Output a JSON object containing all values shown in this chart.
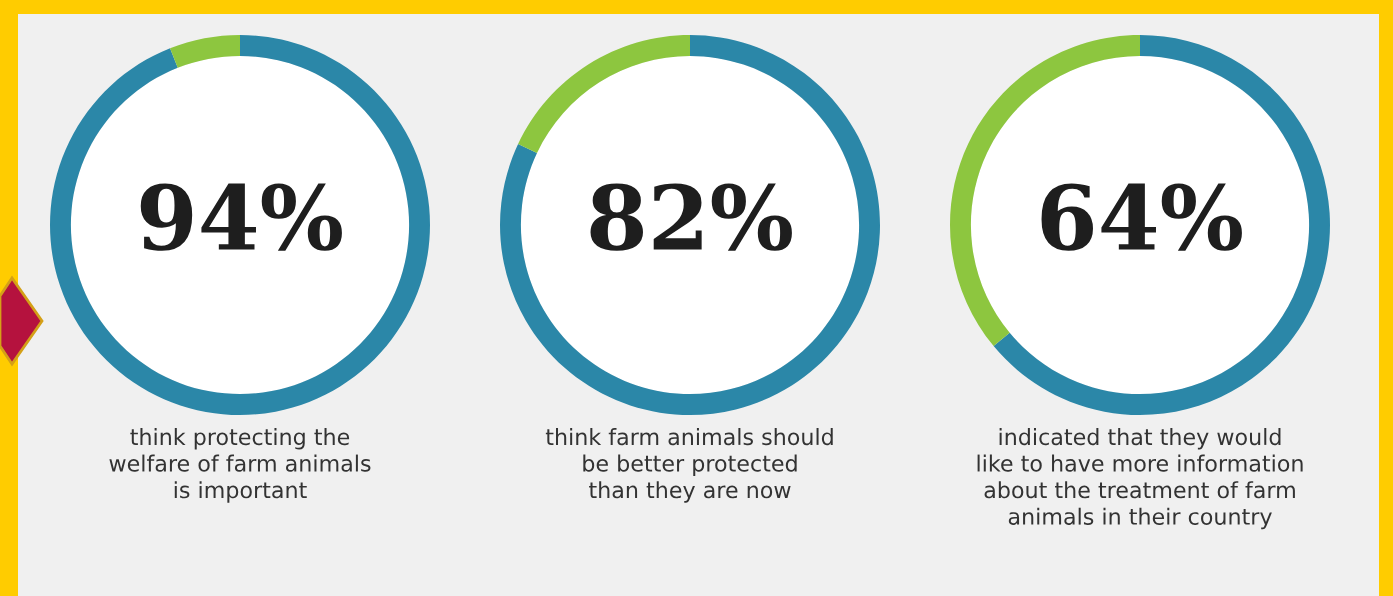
{
  "chart_data": [
    {
      "type": "donut",
      "categories": [
        null,
        null
      ],
      "values": [
        94,
        6
      ],
      "colors": [
        "#2b87a8",
        "#8dc63f"
      ],
      "value_labels": [
        "94%",
        null
      ],
      "annotations": [
        "think protecting the\nwelfare of farm animals\nis important"
      ]
    },
    {
      "type": "donut",
      "categories": [
        null,
        null
      ],
      "values": [
        82,
        18
      ],
      "colors": [
        "#2b87a8",
        "#8dc63f"
      ],
      "value_labels": [
        "82%",
        null
      ],
      "annotations": [
        "think farm animals should\nbe better protected\nthan they are now"
      ]
    },
    {
      "type": "donut",
      "categories": [
        null,
        null
      ],
      "values": [
        64,
        36
      ],
      "colors": [
        "#2b87a8",
        "#8dc63f"
      ],
      "value_labels": [
        "64%",
        null
      ],
      "annotations": [
        "indicated that they would\nlike to have more information\nabout the treatment of farm\nanimals in their country"
      ]
    }
  ]
}
